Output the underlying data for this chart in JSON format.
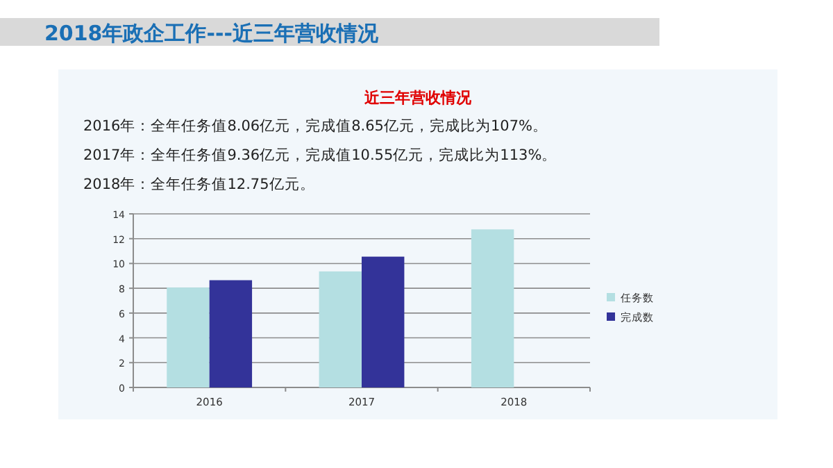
{
  "chart_data": {
    "type": "bar",
    "title": "2018年政企工作---近三年营收情况",
    "subtitle": "近三年营收情况",
    "annotations": [
      "2016年：全年任务值8.06亿元，完成值8.65亿元，完成比为107%。",
      "2017年：全年任务值9.36亿元，完成值10.55亿元，完成比为113%。",
      "2018年：全年任务值12.75亿元。"
    ],
    "categories": [
      "2016",
      "2017",
      "2018"
    ],
    "series": [
      {
        "name": "任务数",
        "color": "#b4dfe2",
        "values": [
          8.06,
          9.36,
          12.75
        ]
      },
      {
        "name": "完成数",
        "color": "#333399",
        "values": [
          8.65,
          10.55,
          null
        ]
      }
    ],
    "ylim": [
      0,
      14
    ],
    "yticks": [
      0,
      2,
      4,
      6,
      8,
      10,
      12,
      14
    ],
    "grid": "y",
    "legend": "right"
  }
}
